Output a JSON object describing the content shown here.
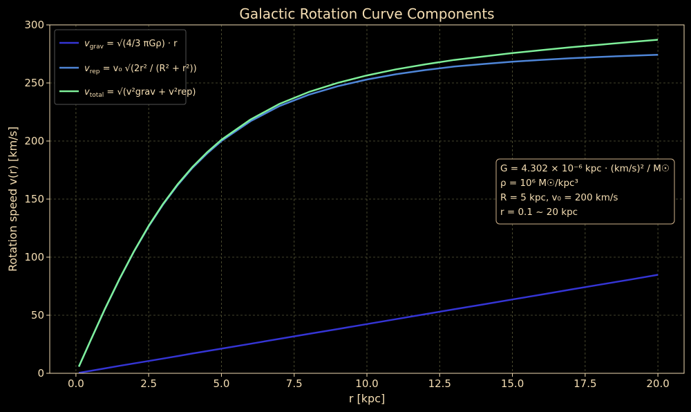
{
  "chart_data": {
    "type": "line",
    "title": "Galactic Rotation Curve Components",
    "xlabel": "r [kpc]",
    "ylabel": "Rotation speed v(r) [km/s]",
    "xlim": [
      -0.9,
      20.9
    ],
    "ylim": [
      0,
      300
    ],
    "xticks": [
      "0.0",
      "2.5",
      "5.0",
      "7.5",
      "10.0",
      "12.5",
      "15.0",
      "17.5",
      "20.0"
    ],
    "xtick_values": [
      0,
      2.5,
      5,
      7.5,
      10,
      12.5,
      15,
      17.5,
      20
    ],
    "yticks": [
      "0",
      "50",
      "100",
      "150",
      "200",
      "250",
      "300"
    ],
    "ytick_values": [
      0,
      50,
      100,
      150,
      200,
      250,
      300
    ],
    "grid": true,
    "legend_position": "top-left",
    "x": [
      0.1,
      0.5,
      1,
      1.5,
      2,
      2.5,
      3,
      3.5,
      4,
      4.5,
      5,
      6,
      7,
      8,
      9,
      10,
      11,
      12,
      13,
      14,
      15,
      16,
      17,
      18,
      19,
      20
    ],
    "series": [
      {
        "name": "v_grav = √(4/3 πGρ) · r",
        "color": "#3535d5",
        "values": [
          0.4,
          2.1,
          4.2,
          6.4,
          8.5,
          10.6,
          12.7,
          14.8,
          17.0,
          19.1,
          21.2,
          25.4,
          29.7,
          33.9,
          38.1,
          42.4,
          46.6,
          50.9,
          55.1,
          59.3,
          63.6,
          67.8,
          72.1,
          76.3,
          80.5,
          84.8
        ]
      },
      {
        "name": "v_rep = v0 √(2r² / (R² + r²))",
        "color": "#4f86d8",
        "values": [
          5.7,
          28.1,
          55.5,
          81.2,
          105.0,
          126.5,
          145.5,
          162.2,
          176.7,
          189.1,
          200.0,
          217.1,
          230.2,
          239.8,
          247.2,
          253.0,
          257.5,
          261.1,
          264.1,
          266.3,
          268.3,
          269.9,
          271.3,
          272.4,
          273.4,
          274.3
        ]
      },
      {
        "name": "v_total = √(v_grav² + v_rep²)",
        "color": "#7ff09a",
        "values": [
          5.7,
          28.2,
          55.7,
          81.5,
          105.3,
          127.0,
          146.1,
          162.9,
          177.5,
          190.1,
          201.1,
          218.6,
          232.1,
          242.2,
          250.1,
          256.5,
          261.7,
          266.0,
          269.8,
          272.8,
          275.7,
          278.3,
          280.7,
          282.9,
          285.1,
          287.2
        ]
      }
    ],
    "legend": [
      {
        "prefix": "v",
        "sub": "grav",
        "rhs": " = √(4/3 πGρ) · r"
      },
      {
        "prefix": "v",
        "sub": "rep",
        "rhs": " = v₀ √(2r² / (R² + r²))"
      },
      {
        "prefix": "v",
        "sub": "total",
        "rhs": " = √(v²grav + v²rep)"
      }
    ],
    "annotation_lines": [
      "G = 4.302 × 10⁻⁶ kpc · (km/s)² / M☉",
      "ρ = 10⁶ M☉/kpc³",
      "R = 5 kpc, v₀ = 200 km/s",
      "r = 0.1 ~ 20 kpc"
    ],
    "annotation_position": "right-middle"
  },
  "colors": {
    "background": "#000000",
    "text": "#f5deb3",
    "grid": "#5c5c3a",
    "axis": "#f5deb3",
    "box_border": "#d2b48c"
  }
}
